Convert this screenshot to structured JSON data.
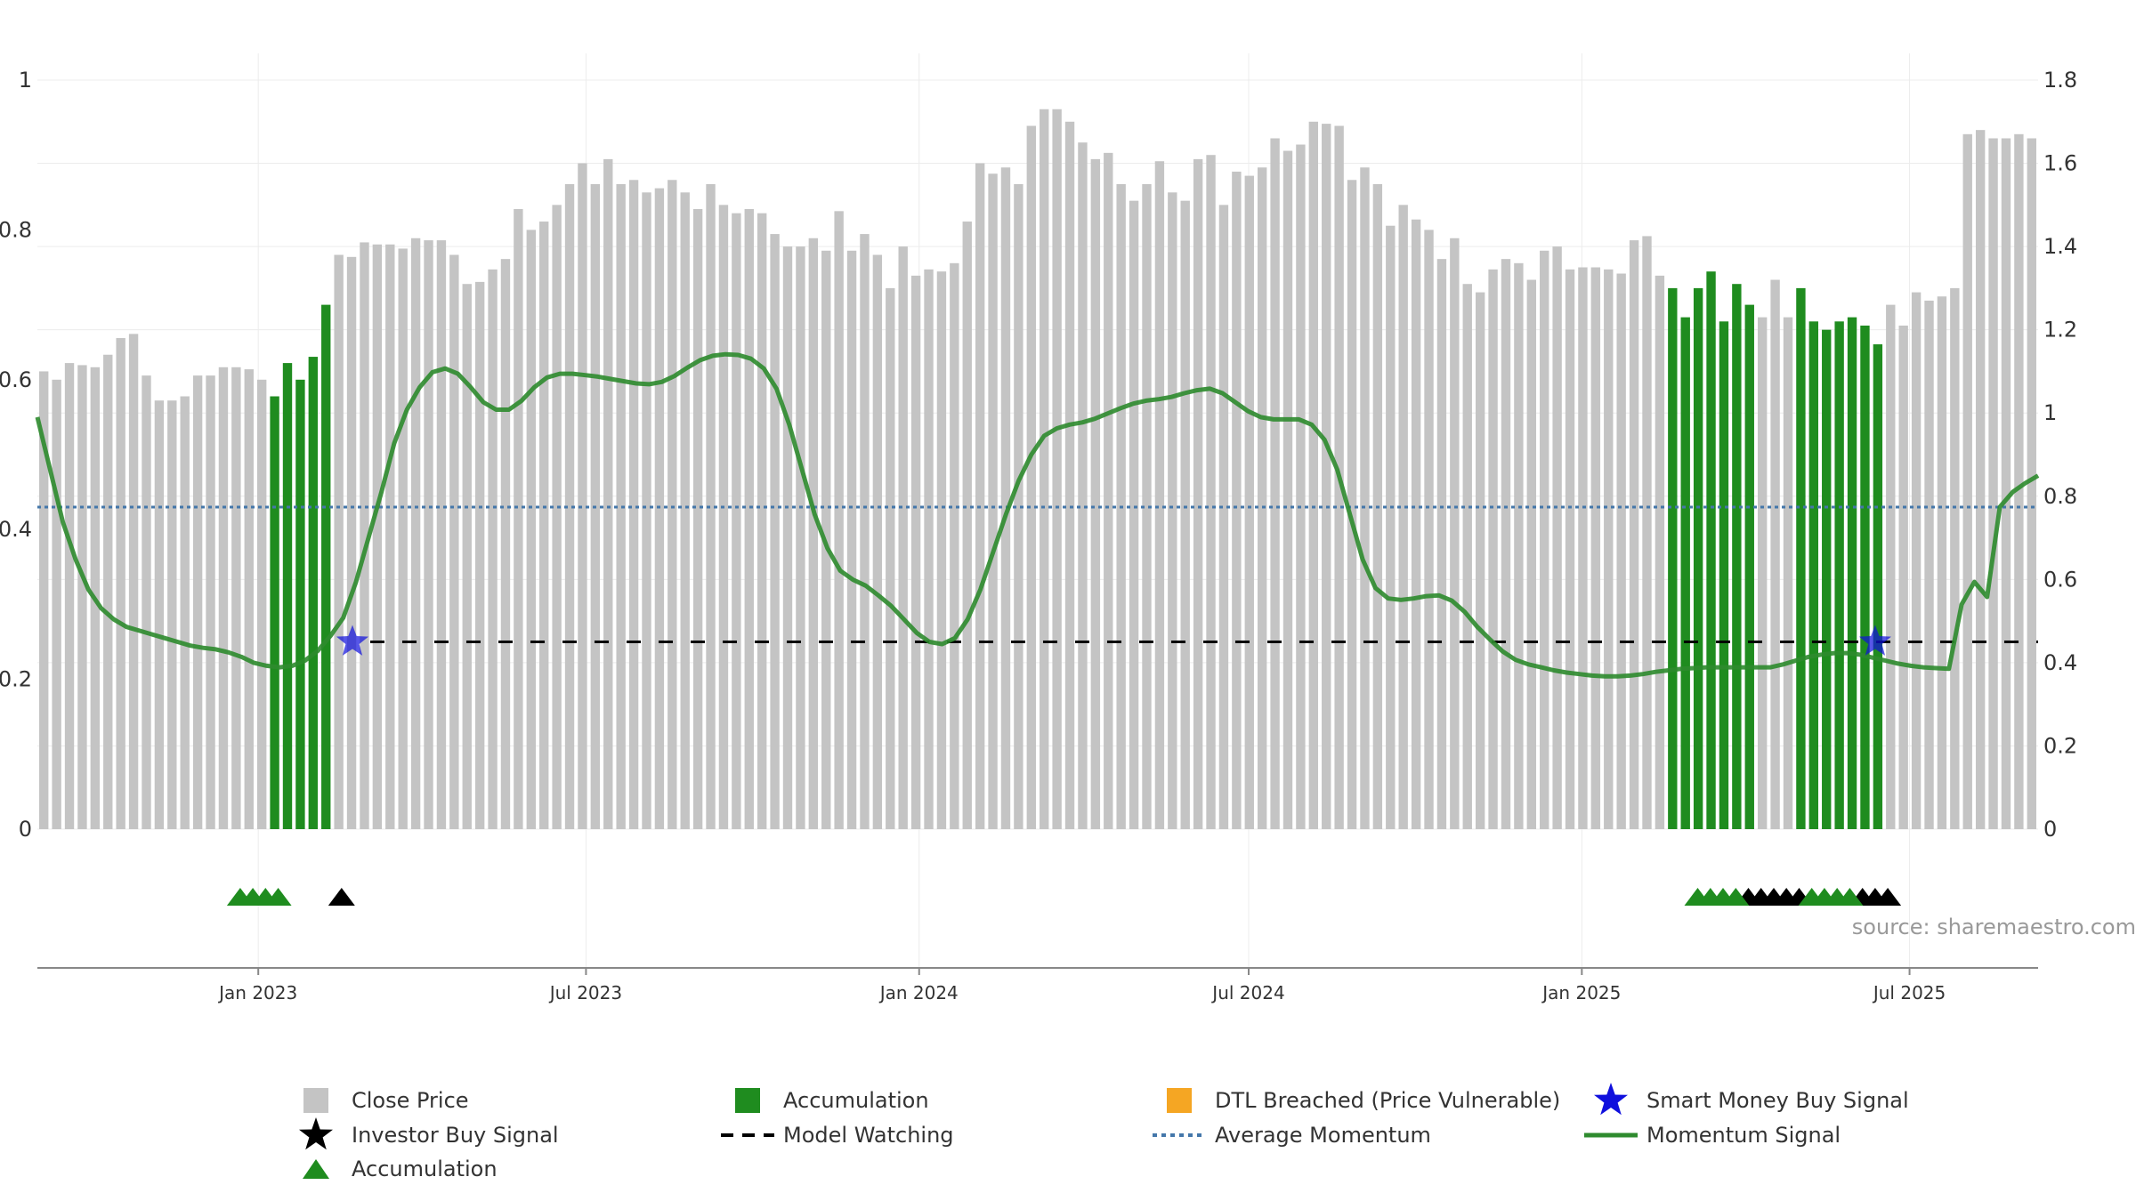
{
  "chart_data": {
    "type": "bar",
    "title": "",
    "source": "source: sharemaestro.com",
    "x_start": "2022-09-01",
    "x_end": "2025-09-10",
    "bar_interval_days": 7,
    "left_axis": {
      "ylim": [
        0,
        1
      ],
      "ticks": [
        "0",
        "0.2",
        "0.4",
        "0.6",
        "0.8",
        "1"
      ],
      "tick_values": [
        0,
        0.2,
        0.4,
        0.6,
        0.8,
        1
      ]
    },
    "right_axis": {
      "ylim": [
        0,
        1.8
      ],
      "ticks": [
        "0",
        "0.2",
        "0.4",
        "0.6",
        "0.8",
        "1",
        "1.2",
        "1.4",
        "1.6",
        "1.8"
      ],
      "tick_values": [
        0,
        0.2,
        0.4,
        0.6,
        0.8,
        1,
        1.2,
        1.4,
        1.6,
        1.8
      ]
    },
    "x_ticks": [
      {
        "label": "Jan 2023",
        "date": "2023-01-01"
      },
      {
        "label": "Jul 2023",
        "date": "2023-07-01"
      },
      {
        "label": "Jan 2024",
        "date": "2024-01-01"
      },
      {
        "label": "Jul 2024",
        "date": "2024-07-01"
      },
      {
        "label": "Jan 2025",
        "date": "2025-01-01"
      },
      {
        "label": "Jul 2025",
        "date": "2025-07-01"
      }
    ],
    "close_price": [
      1.1,
      1.08,
      1.12,
      1.115,
      1.11,
      1.14,
      1.18,
      1.19,
      1.09,
      1.03,
      1.03,
      1.04,
      1.09,
      1.09,
      1.11,
      1.11,
      1.105,
      1.08,
      1.04,
      1.12,
      1.08,
      1.135,
      1.26,
      1.38,
      1.375,
      1.41,
      1.405,
      1.405,
      1.395,
      1.42,
      1.415,
      1.415,
      1.38,
      1.31,
      1.315,
      1.345,
      1.37,
      1.49,
      1.44,
      1.46,
      1.5,
      1.55,
      1.6,
      1.55,
      1.61,
      1.55,
      1.56,
      1.53,
      1.54,
      1.56,
      1.53,
      1.49,
      1.55,
      1.5,
      1.48,
      1.49,
      1.48,
      1.43,
      1.4,
      1.4,
      1.42,
      1.39,
      1.485,
      1.39,
      1.43,
      1.38,
      1.3,
      1.4,
      1.33,
      1.345,
      1.34,
      1.36,
      1.46,
      1.6,
      1.575,
      1.59,
      1.55,
      1.69,
      1.73,
      1.73,
      1.7,
      1.65,
      1.61,
      1.625,
      1.55,
      1.51,
      1.55,
      1.605,
      1.53,
      1.51,
      1.61,
      1.62,
      1.5,
      1.58,
      1.57,
      1.59,
      1.66,
      1.63,
      1.645,
      1.7,
      1.695,
      1.69,
      1.56,
      1.59,
      1.55,
      1.45,
      1.5,
      1.465,
      1.44,
      1.37,
      1.42,
      1.31,
      1.29,
      1.345,
      1.37,
      1.36,
      1.32,
      1.39,
      1.4,
      1.345,
      1.35,
      1.35,
      1.345,
      1.335,
      1.415,
      1.425,
      1.33,
      1.3,
      1.23,
      1.3,
      1.34,
      1.22,
      1.31,
      1.26,
      1.23,
      1.32,
      1.23,
      1.3,
      1.22,
      1.2,
      1.22,
      1.23,
      1.21,
      1.165,
      1.26,
      1.21,
      1.29,
      1.27,
      1.28,
      1.3,
      1.67,
      1.68,
      1.66,
      1.66,
      1.67,
      1.66
    ],
    "accumulation_bars": [
      {
        "from": 18,
        "to": 22
      },
      {
        "from": 127,
        "to": 133
      },
      {
        "from": 137,
        "to": 143
      }
    ],
    "momentum_signal": [
      0.55,
      0.48,
      0.41,
      0.36,
      0.32,
      0.295,
      0.28,
      0.27,
      0.265,
      0.26,
      0.255,
      0.25,
      0.245,
      0.242,
      0.24,
      0.236,
      0.23,
      0.222,
      0.218,
      0.216,
      0.218,
      0.225,
      0.238,
      0.258,
      0.282,
      0.33,
      0.39,
      0.45,
      0.515,
      0.56,
      0.59,
      0.61,
      0.615,
      0.608,
      0.59,
      0.57,
      0.56,
      0.56,
      0.572,
      0.59,
      0.603,
      0.608,
      0.608,
      0.606,
      0.604,
      0.601,
      0.598,
      0.595,
      0.594,
      0.597,
      0.605,
      0.616,
      0.626,
      0.632,
      0.634,
      0.633,
      0.628,
      0.615,
      0.588,
      0.54,
      0.48,
      0.42,
      0.375,
      0.345,
      0.333,
      0.325,
      0.312,
      0.298,
      0.28,
      0.262,
      0.25,
      0.247,
      0.255,
      0.28,
      0.32,
      0.37,
      0.42,
      0.465,
      0.5,
      0.525,
      0.535,
      0.54,
      0.543,
      0.548,
      0.555,
      0.562,
      0.568,
      0.572,
      0.574,
      0.577,
      0.582,
      0.586,
      0.588,
      0.582,
      0.57,
      0.558,
      0.55,
      0.547,
      0.547,
      0.547,
      0.54,
      0.52,
      0.48,
      0.42,
      0.36,
      0.322,
      0.308,
      0.306,
      0.308,
      0.311,
      0.312,
      0.305,
      0.29,
      0.27,
      0.253,
      0.237,
      0.226,
      0.22,
      0.216,
      0.212,
      0.209,
      0.207,
      0.205,
      0.204,
      0.204,
      0.205,
      0.207,
      0.21,
      0.212,
      0.214,
      0.215,
      0.216,
      0.216,
      0.216,
      0.216,
      0.216,
      0.216,
      0.22,
      0.225,
      0.23,
      0.233,
      0.235,
      0.235,
      0.233,
      0.229,
      0.225,
      0.221,
      0.218,
      0.216,
      0.215,
      0.214,
      0.3,
      0.33,
      0.31,
      0.43,
      0.45,
      0.462,
      0.472
    ],
    "average_momentum": 0.43,
    "model_watching": {
      "level": 0.25,
      "from_date": "2023-02-22"
    },
    "smart_money_buy_signals": [
      {
        "date": "2023-02-22",
        "value": 0.25
      },
      {
        "date": "2025-06-12",
        "value": 0.25
      }
    ],
    "accumulation_triangles": [
      "2022-12-22",
      "2022-12-29",
      "2023-01-05",
      "2023-01-12",
      "2025-03-06",
      "2025-03-13",
      "2025-03-20",
      "2025-03-27",
      "2025-05-08",
      "2025-05-15",
      "2025-05-22",
      "2025-05-29"
    ],
    "investor_buy_triangles": [
      "2023-02-16",
      "2025-04-03",
      "2025-04-10",
      "2025-04-17",
      "2025-04-24",
      "2025-05-01",
      "2025-06-05",
      "2025-06-12",
      "2025-06-19"
    ],
    "colors": {
      "close_price": "#c4c4c4",
      "accumulation": "#1f8c1f",
      "dtl": "#f5a623",
      "smart_money": "#1010dd",
      "investor": "#000000",
      "avg_momentum": "#4477aa",
      "momentum": "#2e8b2e",
      "watching": "#000000"
    },
    "legend": {
      "close_price": "Close Price",
      "accumulation_bar": "Accumulation",
      "dtl_breached": "DTL Breached (Price Vulnerable)",
      "smart_money": "Smart Money Buy Signal",
      "investor_buy": "Investor Buy Signal",
      "model_watching": "Model Watching",
      "average_momentum": "Average Momentum",
      "momentum_signal": "Momentum Signal",
      "accumulation_triangle": "Accumulation"
    }
  }
}
